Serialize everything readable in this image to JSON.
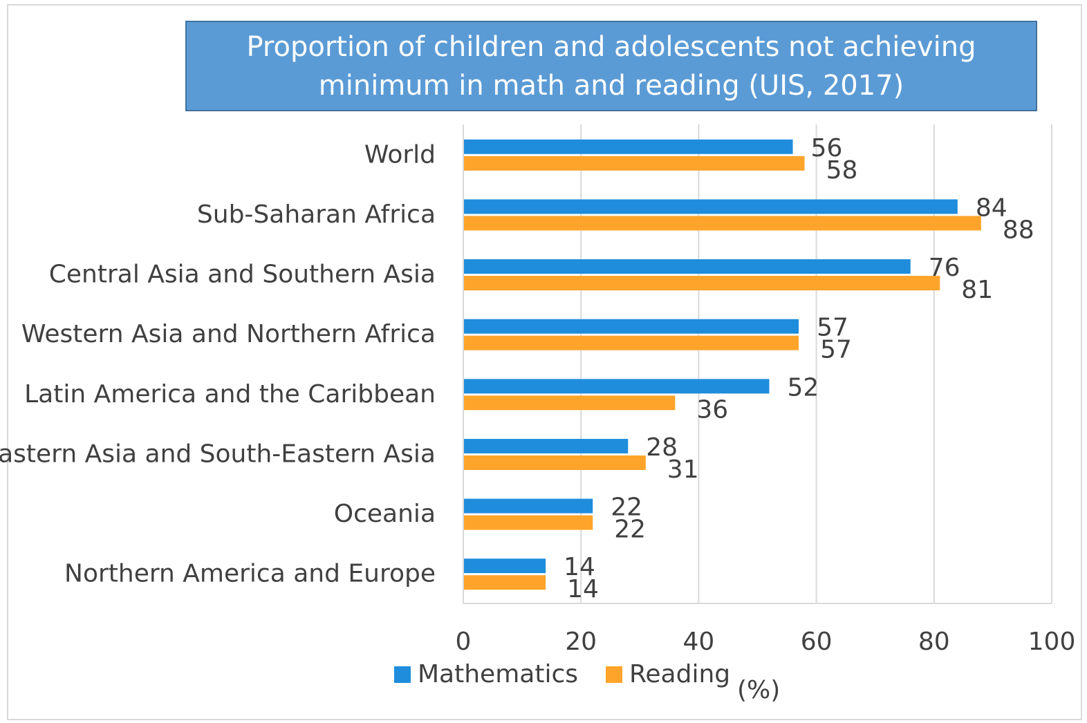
{
  "chart_data": {
    "type": "bar",
    "orientation": "horizontal",
    "title": "Proportion of children and adolescents not achieving minimum in math and reading  (UIS, 2017)",
    "categories": [
      "World",
      "Sub-Saharan Africa",
      "Central Asia and Southern Asia",
      "Western Asia and Northern Africa",
      "Latin America and the Caribbean",
      "Eastern Asia and South-Eastern Asia",
      "Oceania",
      "Northern America and Europe"
    ],
    "series": [
      {
        "name": "Mathematics",
        "color": "#1f8ddc",
        "values": [
          56,
          84,
          76,
          57,
          52,
          28,
          22,
          14
        ]
      },
      {
        "name": "Reading",
        "color": "#ffa42a",
        "values": [
          58,
          88,
          81,
          57,
          36,
          31,
          22,
          14
        ]
      }
    ],
    "xlim": [
      0,
      100
    ],
    "xticks": [
      "0",
      "20",
      "40",
      "60",
      "80",
      "100"
    ],
    "xlabel": "(%)",
    "ylabel": "",
    "grid": true,
    "legend_position": "bottom"
  }
}
